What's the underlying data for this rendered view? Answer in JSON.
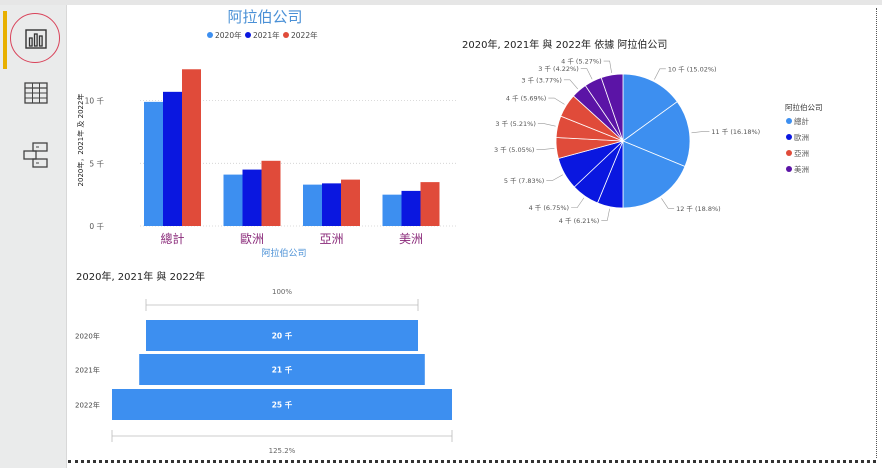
{
  "sidebar": {
    "items": [
      {
        "name": "report-view",
        "icon": "bar-chart-icon",
        "active": true
      },
      {
        "name": "data-view",
        "icon": "table-icon"
      },
      {
        "name": "model-view",
        "icon": "model-icon"
      }
    ]
  },
  "colors": {
    "c2020": "#3d8ff0",
    "c2021": "#0a17e0",
    "c2022": "#e04b3a",
    "c_us": "#5b14a6",
    "title": "#4a90d6",
    "cat": "#8a2a7a"
  },
  "chart_data": [
    {
      "type": "bar",
      "title": "阿拉伯公司",
      "categories": [
        "總計",
        "歐洲",
        "亞洲",
        "美洲"
      ],
      "series": [
        {
          "name": "2020年",
          "values": [
            9.9,
            4.1,
            3.3,
            2.5
          ]
        },
        {
          "name": "2021年",
          "values": [
            10.7,
            4.5,
            3.4,
            2.8
          ]
        },
        {
          "name": "2022年",
          "values": [
            12.5,
            5.2,
            3.7,
            3.5
          ]
        }
      ],
      "xlabel": "阿拉伯公司",
      "ylabel": "2020年，2021年 及 2022年",
      "ylim": [
        0,
        13
      ],
      "yticks": [
        {
          "value": 0,
          "label": "0 千"
        },
        {
          "value": 5,
          "label": "5 千"
        },
        {
          "value": 10,
          "label": "10 千"
        }
      ],
      "legend": "top-center",
      "grid": true
    },
    {
      "type": "pie",
      "title": "2020年, 2021年 與 2022年 依據 阿拉伯公司",
      "legend_title": "阿拉伯公司",
      "legend_items": [
        "總計",
        "歐洲",
        "亞洲",
        "美洲"
      ],
      "slices": [
        {
          "category": "總計",
          "label": "10 千 (15.02%)",
          "percent": 15.02
        },
        {
          "category": "總計",
          "label": "11 千 (16.18%)",
          "percent": 16.18
        },
        {
          "category": "總計",
          "label": "12 千 (18.8%)",
          "percent": 18.8
        },
        {
          "category": "歐洲",
          "label": "4 千 (6.21%)",
          "percent": 6.21
        },
        {
          "category": "歐洲",
          "label": "4 千 (6.75%)",
          "percent": 6.75
        },
        {
          "category": "歐洲",
          "label": "5 千 (7.83%)",
          "percent": 7.83
        },
        {
          "category": "亞洲",
          "label": "3 千 (5.05%)",
          "percent": 5.05
        },
        {
          "category": "亞洲",
          "label": "3 千 (5.21%)",
          "percent": 5.21
        },
        {
          "category": "亞洲",
          "label": "4 千 (5.69%)",
          "percent": 5.69
        },
        {
          "category": "美洲",
          "label": "3 千 (3.77%)",
          "percent": 3.77
        },
        {
          "category": "美洲",
          "label": "3 千 (4.22%)",
          "percent": 4.22
        },
        {
          "category": "美洲",
          "label": "4 千 (5.27%)",
          "percent": 5.27
        }
      ]
    },
    {
      "type": "bar",
      "orientation": "funnel",
      "title": "2020年, 2021年 與 2022年",
      "categories": [
        "2020年",
        "2021年",
        "2022年"
      ],
      "values": [
        20,
        21,
        25
      ],
      "value_labels": [
        "20 千",
        "21 千",
        "25 千"
      ],
      "top_label": "100%",
      "bottom_label": "125.2%"
    }
  ]
}
